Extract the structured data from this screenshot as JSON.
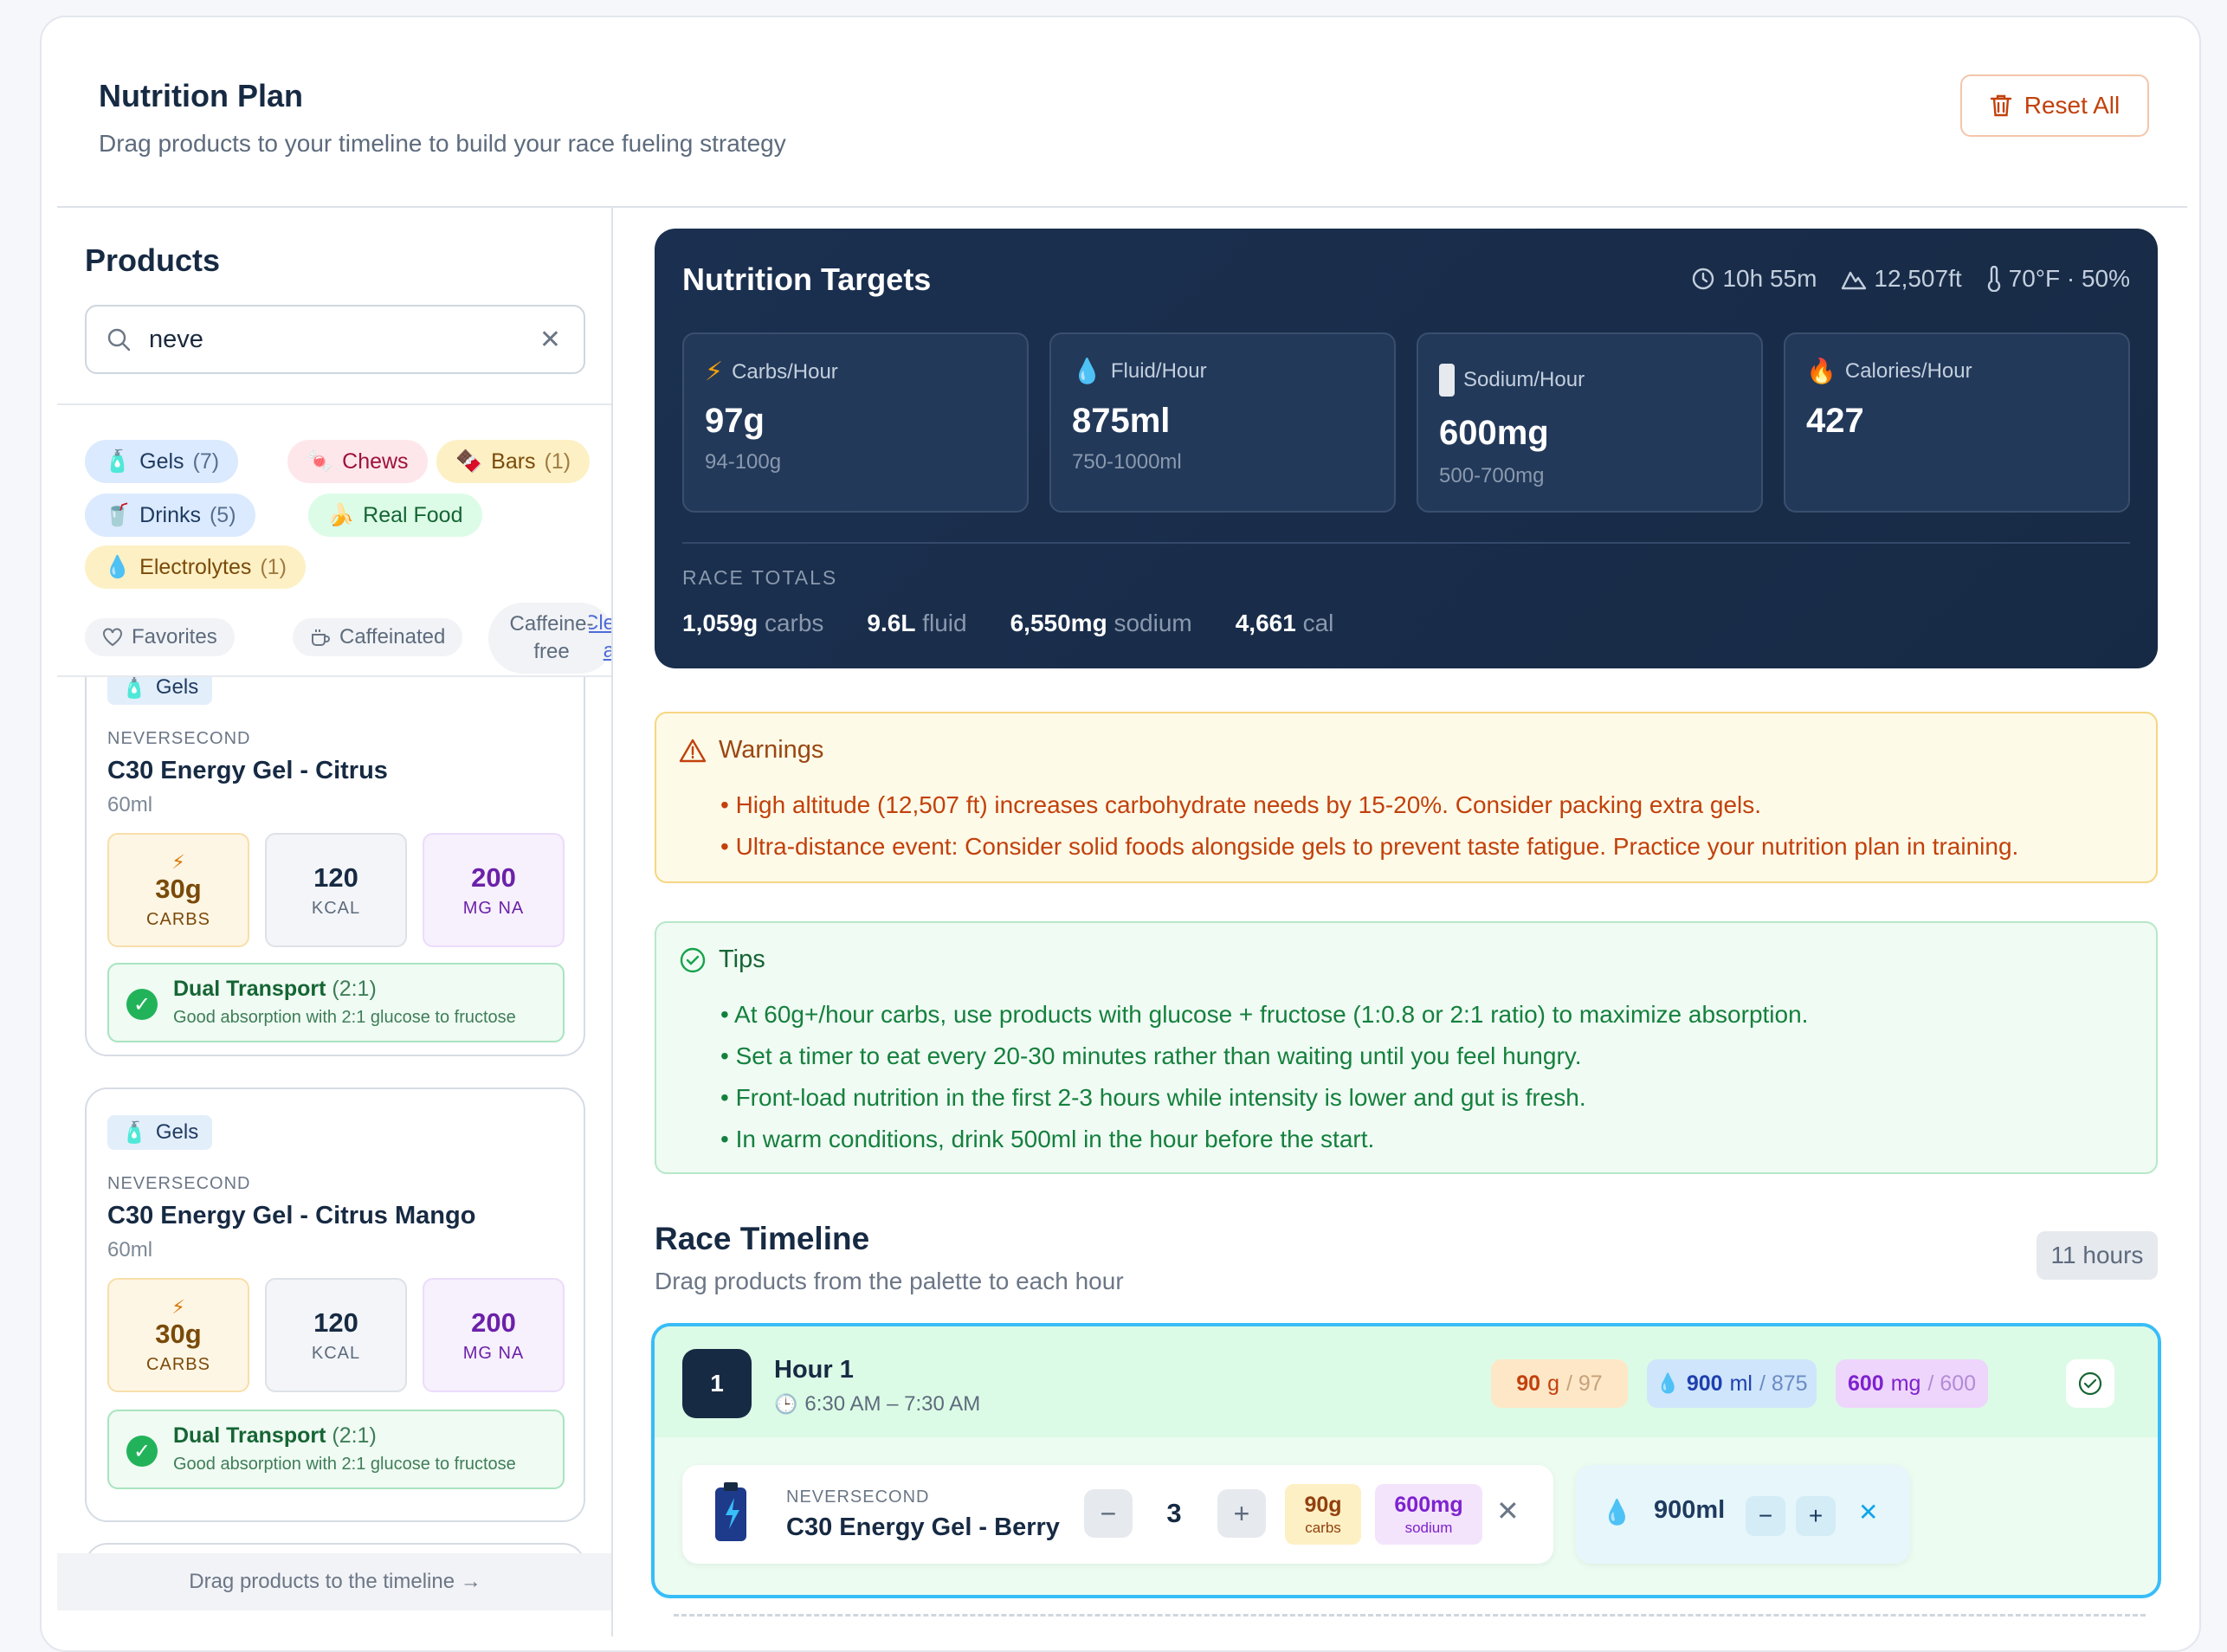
{
  "header": {
    "title": "Nutrition Plan",
    "subtitle": "Drag products to your timeline to build your race fueling strategy",
    "reset_label": "Reset All"
  },
  "sidebar": {
    "title": "Products",
    "search": {
      "value": "neve"
    },
    "categories": [
      {
        "label": "Gels",
        "count": "(7)"
      },
      {
        "label": "Chews",
        "count": ""
      },
      {
        "label": "Bars",
        "count": "(1)"
      },
      {
        "label": "Drinks",
        "count": "(5)"
      },
      {
        "label": "Real Food",
        "count": ""
      },
      {
        "label": "Electrolytes",
        "count": "(1)"
      }
    ],
    "filters": {
      "favorites": "Favorites",
      "caffeinated": "Caffeinated",
      "caffeine_free_1": "Caffeine-",
      "caffeine_free_2": "free",
      "clear_1": "Cle",
      "clear_2": "a"
    },
    "products": [
      {
        "category": "Gels",
        "brand": "NEVERSECOND",
        "name": "C30 Energy Gel - Citrus",
        "volume": "60ml",
        "carbs": "30g",
        "carbs_label": "CARBS",
        "kcal": "120",
        "kcal_label": "KCAL",
        "sodium": "200",
        "sodium_label": "MG NA",
        "transport_title": "Dual Transport",
        "transport_ratio": "(2:1)",
        "transport_desc": "Good absorption with 2:1 glucose to fructose"
      },
      {
        "category": "Gels",
        "brand": "NEVERSECOND",
        "name": "C30 Energy Gel - Citrus Mango",
        "volume": "60ml",
        "carbs": "30g",
        "carbs_label": "CARBS",
        "kcal": "120",
        "kcal_label": "KCAL",
        "sodium": "200",
        "sodium_label": "MG NA",
        "transport_title": "Dual Transport",
        "transport_ratio": "(2:1)",
        "transport_desc": "Good absorption with 2:1 glucose to fructose"
      }
    ],
    "footer": "Drag products to the timeline →"
  },
  "targets": {
    "title": "Nutrition Targets",
    "duration": "10h 55m",
    "elevation": "12,507ft",
    "weather": "70°F · 50%",
    "boxes": [
      {
        "label": "Carbs/Hour",
        "value": "97g",
        "range": "94-100g"
      },
      {
        "label": "Fluid/Hour",
        "value": "875ml",
        "range": "750-1000ml"
      },
      {
        "label": "Sodium/Hour",
        "value": "600mg",
        "range": "500-700mg"
      },
      {
        "label": "Calories/Hour",
        "value": "427",
        "range": ""
      }
    ],
    "totals_label": "RACE TOTALS",
    "totals": [
      {
        "value": "1,059g",
        "unit": "carbs"
      },
      {
        "value": "9.6L",
        "unit": "fluid"
      },
      {
        "value": "6,550mg",
        "unit": "sodium"
      },
      {
        "value": "4,661",
        "unit": "cal"
      }
    ]
  },
  "warnings": {
    "title": "Warnings",
    "items": [
      "• High altitude (12,507 ft) increases carbohydrate needs by 15-20%. Consider packing extra gels.",
      "• Ultra-distance event: Consider solid foods alongside gels to prevent taste fatigue. Practice your nutrition plan in training."
    ]
  },
  "tips": {
    "title": "Tips",
    "items": [
      "• At 60g+/hour carbs, use products with glucose + fructose (1:0.8 or 2:1 ratio) to maximize absorption.",
      "• Set a timer to eat every 20-30 minutes rather than waiting until you feel hungry.",
      "• Front-load nutrition in the first 2-3 hours while intensity is lower and gut is fresh.",
      "• In warm conditions, drink 500ml in the hour before the start."
    ]
  },
  "timeline": {
    "title": "Race Timeline",
    "subtitle": "Drag products from the palette to each hour",
    "hours_badge": "11 hours",
    "hour": {
      "number": "1",
      "title": "Hour 1",
      "time": "6:30 AM – 7:30 AM",
      "carbs": {
        "value": "90",
        "unit": "g",
        "target": "/ 97"
      },
      "fluid": {
        "value": "900",
        "unit": "ml",
        "target": "/ 875"
      },
      "sodium": {
        "value": "600",
        "unit": "mg",
        "target": "/ 600"
      },
      "item": {
        "brand": "NEVERSECOND",
        "name": "C30 Energy Gel - Berry",
        "qty": "3",
        "carbs": "90g",
        "carbs_label": "carbs",
        "sodium": "600mg",
        "sodium_label": "sodium"
      },
      "fluid_item": {
        "value": "900ml"
      }
    }
  },
  "colors": {
    "navy": "#172a43",
    "accent_orange": "#c2410c",
    "success": "#22b35a",
    "highlight": "#38bdf8"
  }
}
